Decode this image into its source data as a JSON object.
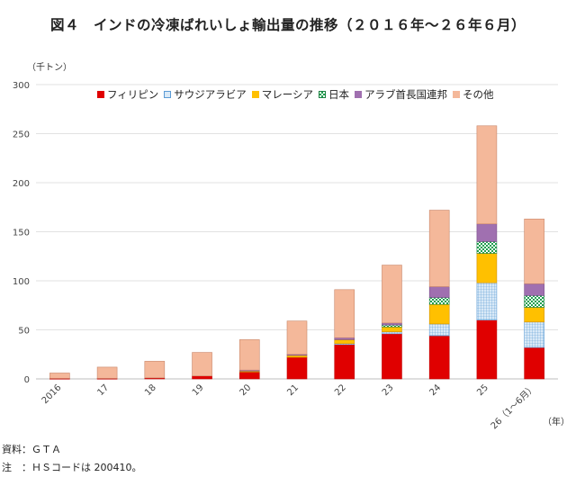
{
  "title": "図４　インドの冷凍ばれいしょ輸出量の推移（２０１６年～２６年６月）",
  "notes": [
    "資料：ＧＴＡ",
    "注　：ＨＳコードは 200410。"
  ],
  "colors": {
    "フィリピン": "#e00000",
    "サウジアラビア": "#9dc3e6",
    "マレーシア": "#ffc000",
    "日本": "#20a050",
    "アラブ首長国連邦": "#a070b0",
    "その他": "#f4b89a"
  },
  "chart_data": {
    "type": "bar",
    "stacked": true,
    "title": "図４　インドの冷凍ばれいしょ輸出量の推移（２０１６年～２６年６月）",
    "y_unit": "（千トン）",
    "x_unit": "（年）",
    "ylim": [
      0,
      300
    ],
    "yticks": [
      0,
      50,
      100,
      150,
      200,
      250,
      300
    ],
    "grid": true,
    "legend_position": "top",
    "categories": [
      "2016",
      "17",
      "18",
      "19",
      "20",
      "21",
      "22",
      "23",
      "24",
      "25",
      "26（1～6月）"
    ],
    "series": [
      {
        "name": "フィリピン",
        "values": [
          0.5,
          0.5,
          1,
          3,
          7,
          22,
          35,
          46,
          44,
          60,
          32
        ]
      },
      {
        "name": "サウジアラビア",
        "values": [
          0,
          0,
          0,
          0,
          0,
          0,
          1,
          2,
          12,
          38,
          26
        ]
      },
      {
        "name": "マレーシア",
        "values": [
          0,
          0,
          0,
          0,
          1,
          2,
          4,
          5,
          20,
          30,
          15
        ]
      },
      {
        "name": "日本",
        "values": [
          0,
          0,
          0,
          0,
          0,
          0,
          0,
          2,
          7,
          12,
          12
        ]
      },
      {
        "name": "アラブ首長国連邦",
        "values": [
          0,
          0,
          0,
          0,
          1,
          1,
          2,
          2,
          11,
          18,
          12
        ]
      },
      {
        "name": "その他",
        "values": [
          5.5,
          11.5,
          17,
          24,
          31,
          34,
          49,
          59,
          78,
          100,
          66
        ]
      }
    ]
  }
}
